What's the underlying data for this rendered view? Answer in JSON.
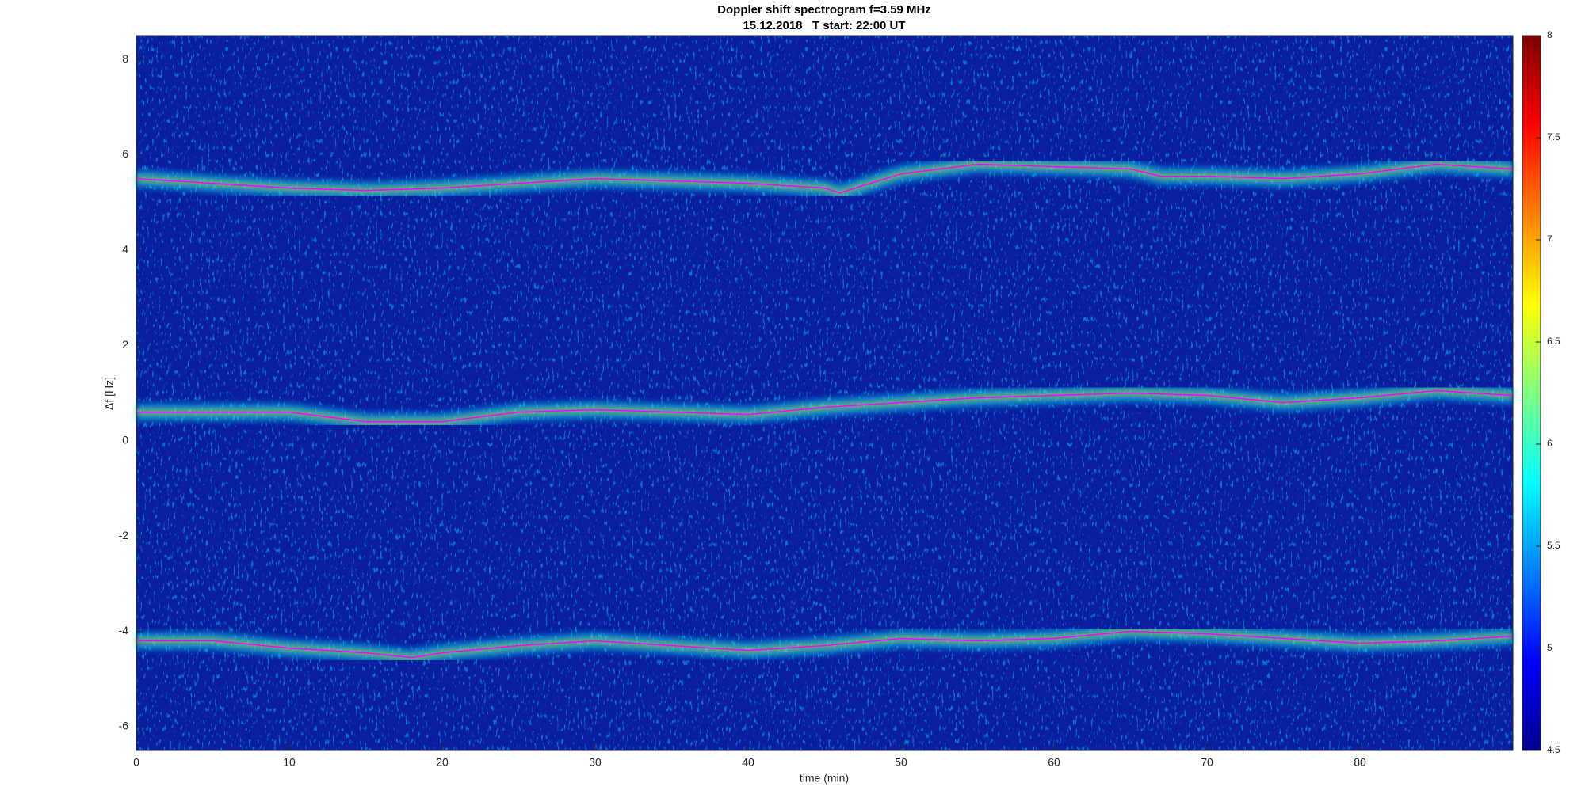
{
  "chart_data": {
    "type": "spectrogram",
    "title": "Doppler shift spectrogram f=3.59 MHz",
    "subtitle": "15.12.2018   T start: 22:00 UT",
    "x_label": "time (min)",
    "y_label": "Δf [Hz]",
    "xlim": [
      0,
      90
    ],
    "ylim": [
      -6.5,
      8.5
    ],
    "xticks": [
      0,
      10,
      20,
      30,
      40,
      50,
      60,
      70,
      80
    ],
    "yticks": [
      -6,
      -4,
      -2,
      0,
      2,
      4,
      6,
      8
    ],
    "series": [
      {
        "color": "#ff00ff",
        "x": [
          0,
          5,
          10,
          15,
          20,
          25,
          30,
          35,
          40,
          45,
          46,
          50,
          55,
          60,
          65,
          67,
          70,
          75,
          80,
          85,
          90
        ],
        "values": [
          5.5,
          5.4,
          5.3,
          5.25,
          5.3,
          5.4,
          5.5,
          5.45,
          5.4,
          5.3,
          5.2,
          5.6,
          5.8,
          5.75,
          5.7,
          5.55,
          5.55,
          5.5,
          5.6,
          5.8,
          5.7
        ]
      },
      {
        "color": "#ff00ff",
        "x": [
          0,
          5,
          10,
          15,
          20,
          25,
          30,
          35,
          40,
          45,
          50,
          55,
          60,
          65,
          70,
          75,
          80,
          85,
          90
        ],
        "values": [
          0.6,
          0.6,
          0.6,
          0.4,
          0.4,
          0.6,
          0.65,
          0.6,
          0.55,
          0.7,
          0.8,
          0.9,
          0.95,
          1.0,
          0.95,
          0.8,
          0.9,
          1.05,
          0.95
        ]
      },
      {
        "color": "#ff00ff",
        "x": [
          0,
          5,
          10,
          15,
          18,
          20,
          25,
          30,
          35,
          40,
          45,
          50,
          55,
          60,
          65,
          70,
          75,
          80,
          85,
          90
        ],
        "values": [
          -4.2,
          -4.2,
          -4.35,
          -4.45,
          -4.55,
          -4.45,
          -4.3,
          -4.2,
          -4.3,
          -4.4,
          -4.3,
          -4.15,
          -4.2,
          -4.15,
          -4.0,
          -4.05,
          -4.15,
          -4.25,
          -4.2,
          -4.1
        ]
      }
    ],
    "colorbar": {
      "clim": [
        4.5,
        8
      ],
      "ticks": [
        4.5,
        5,
        5.5,
        6,
        6.5,
        7,
        7.5,
        8
      ]
    }
  }
}
